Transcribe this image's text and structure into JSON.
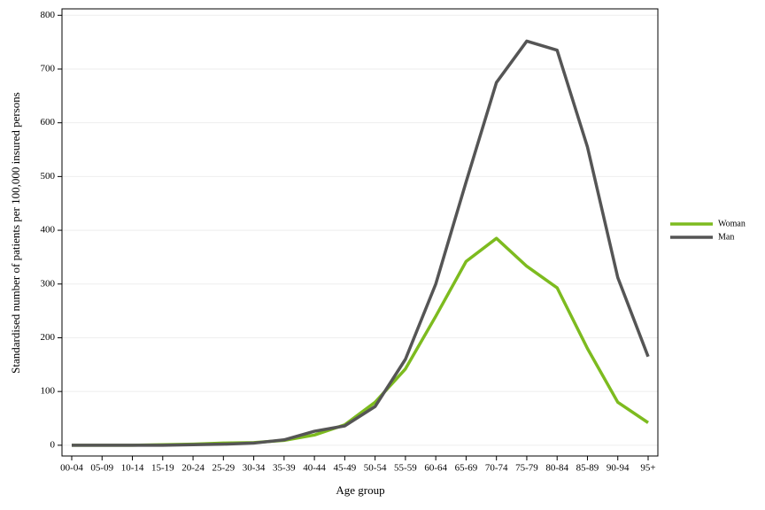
{
  "chart_data": {
    "type": "line",
    "x_label": "Age group",
    "y_label": "Standardised number of patients per 100,000 insured persons",
    "categories": [
      "00-04",
      "05-09",
      "10-14",
      "15-19",
      "20-24",
      "25-29",
      "30-34",
      "35-39",
      "40-44",
      "45-49",
      "50-54",
      "55-59",
      "60-64",
      "65-69",
      "70-74",
      "75-79",
      "80-84",
      "85-89",
      "90-94",
      "95+"
    ],
    "series": [
      {
        "name": "Woman",
        "color": "#7dbb1f",
        "values": [
          0,
          0,
          0,
          1,
          2,
          4,
          5,
          9,
          19,
          38,
          80,
          142,
          240,
          342,
          385,
          333,
          293,
          180,
          80,
          42
        ]
      },
      {
        "name": "Man",
        "color": "#555555",
        "values": [
          0,
          0,
          0,
          0,
          1,
          2,
          4,
          10,
          26,
          36,
          72,
          160,
          300,
          490,
          675,
          752,
          735,
          555,
          312,
          165
        ]
      }
    ],
    "ylim": [
      -20,
      812
    ],
    "yticks": [
      0,
      100,
      200,
      300,
      400,
      500,
      600,
      700,
      800
    ],
    "grid": true,
    "legend": "right"
  }
}
